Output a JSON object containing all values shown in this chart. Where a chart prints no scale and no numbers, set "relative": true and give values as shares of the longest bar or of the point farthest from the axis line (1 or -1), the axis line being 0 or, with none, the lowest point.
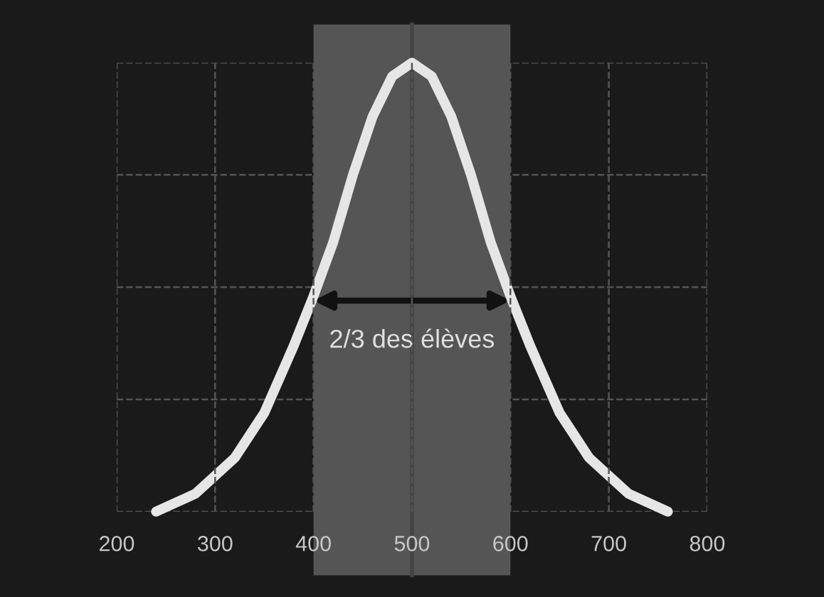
{
  "chart_data": {
    "type": "line",
    "relative": true,
    "x": [
      240,
      280,
      320,
      350,
      380,
      400,
      420,
      440,
      460,
      480,
      500,
      520,
      540,
      560,
      580,
      600,
      620,
      650,
      680,
      720,
      760
    ],
    "series": [
      {
        "color": "#e6e6e6",
        "values": [
          0,
          0.04,
          0.12,
          0.22,
          0.37,
          0.48,
          0.6,
          0.75,
          0.88,
          0.97,
          1,
          0.97,
          0.88,
          0.75,
          0.6,
          0.48,
          0.37,
          0.22,
          0.12,
          0.04,
          0
        ]
      }
    ],
    "xlim": [
      200,
      800
    ],
    "xticks": [
      200,
      300,
      400,
      500,
      600,
      700,
      800
    ],
    "grid": true,
    "marker": "none",
    "line_style": "solid",
    "bands": [
      {
        "axis": "x",
        "from": 400,
        "to": 600,
        "label": "2/3 des élèves",
        "color": "#555555"
      }
    ],
    "ref_lines": [
      {
        "axis": "x",
        "value": 500,
        "color": "#444444"
      }
    ]
  }
}
